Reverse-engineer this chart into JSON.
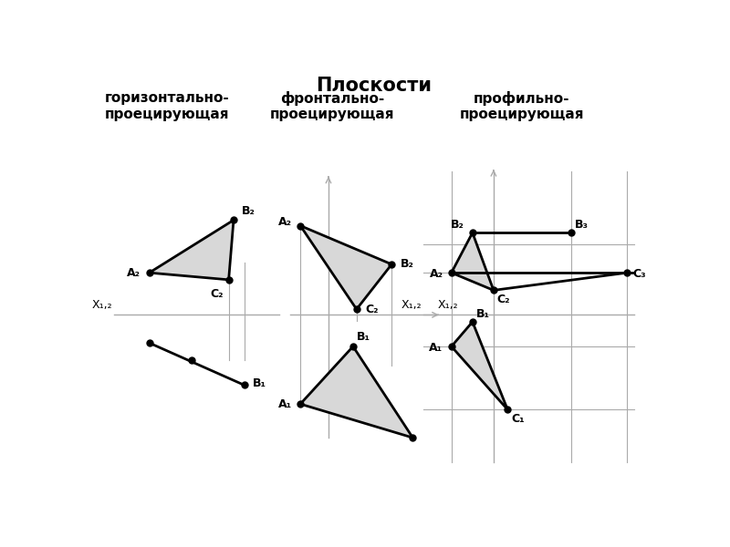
{
  "title": "Плоскости",
  "subtitle1": "горизонтально-\nпроецирующая",
  "subtitle2": "фронтально-\nпроецирующая",
  "subtitle3": "профильно-\nпроецирующая",
  "bg_color": "#ffffff",
  "tri_fill": "#d8d8d8",
  "lc": "#000000",
  "ac": "#999999",
  "fs_title": 15,
  "fs_sub": 11,
  "fs_pt": 10
}
